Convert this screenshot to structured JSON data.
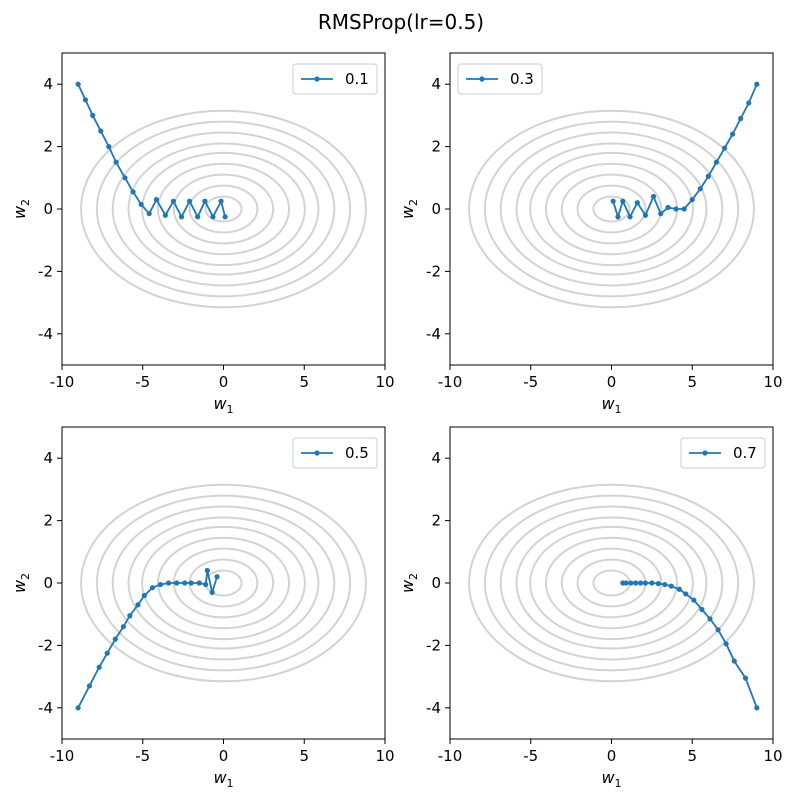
{
  "figure_title": "RMSProp(lr=0.5)",
  "colors": {
    "series": "#1f77b4",
    "contour": "#d3d3d3"
  },
  "chart_data": [
    {
      "type": "line",
      "legend": "0.1",
      "legend_position": "top-right",
      "xlim": [
        -10,
        10
      ],
      "ylim": [
        -5,
        5
      ],
      "xticks": [
        -10,
        -5,
        0,
        5,
        10
      ],
      "yticks": [
        -4,
        -2,
        0,
        2,
        4
      ],
      "xlabel": "w",
      "xlabel_sub": "1",
      "ylabel": "w",
      "ylabel_sub": "2",
      "points": [
        [
          -9,
          4
        ],
        [
          -8.55,
          3.5
        ],
        [
          -8.1,
          3
        ],
        [
          -7.6,
          2.5
        ],
        [
          -7.1,
          2
        ],
        [
          -6.65,
          1.5
        ],
        [
          -6.1,
          1
        ],
        [
          -5.6,
          0.55
        ],
        [
          -5.1,
          0.15
        ],
        [
          -4.6,
          -0.15
        ],
        [
          -4.15,
          0.3
        ],
        [
          -3.6,
          -0.2
        ],
        [
          -3.1,
          0.25
        ],
        [
          -2.6,
          -0.25
        ],
        [
          -2.1,
          0.25
        ],
        [
          -1.6,
          -0.25
        ],
        [
          -1.15,
          0.25
        ],
        [
          -0.65,
          -0.25
        ],
        [
          -0.15,
          0.25
        ],
        [
          0.1,
          -0.25
        ]
      ]
    },
    {
      "type": "line",
      "legend": "0.3",
      "legend_position": "top-left",
      "xlim": [
        -10,
        10
      ],
      "ylim": [
        -5,
        5
      ],
      "xticks": [
        -10,
        -5,
        0,
        5,
        10
      ],
      "yticks": [
        -4,
        -2,
        0,
        2,
        4
      ],
      "xlabel": "w",
      "xlabel_sub": "1",
      "ylabel": "w",
      "ylabel_sub": "2",
      "points": [
        [
          9,
          4
        ],
        [
          8.5,
          3.4
        ],
        [
          8,
          2.9
        ],
        [
          7.5,
          2.4
        ],
        [
          7,
          1.95
        ],
        [
          6.5,
          1.5
        ],
        [
          6,
          1.05
        ],
        [
          5.5,
          0.65
        ],
        [
          5,
          0.3
        ],
        [
          4.5,
          0
        ],
        [
          4,
          0
        ],
        [
          3.5,
          0.05
        ],
        [
          3.05,
          -0.15
        ],
        [
          2.6,
          0.4
        ],
        [
          2.1,
          -0.2
        ],
        [
          1.6,
          0.2
        ],
        [
          1.15,
          -0.25
        ],
        [
          0.7,
          0.25
        ],
        [
          0.4,
          -0.25
        ],
        [
          0.1,
          0.25
        ]
      ]
    },
    {
      "type": "line",
      "legend": "0.5",
      "legend_position": "top-right",
      "xlim": [
        -10,
        10
      ],
      "ylim": [
        -5,
        5
      ],
      "xticks": [
        -10,
        -5,
        0,
        5,
        10
      ],
      "yticks": [
        -4,
        -2,
        0,
        2,
        4
      ],
      "xlabel": "w",
      "xlabel_sub": "1",
      "ylabel": "w",
      "ylabel_sub": "2",
      "points": [
        [
          -9,
          -4
        ],
        [
          -8.3,
          -3.3
        ],
        [
          -7.7,
          -2.7
        ],
        [
          -7.2,
          -2.25
        ],
        [
          -6.7,
          -1.8
        ],
        [
          -6.2,
          -1.4
        ],
        [
          -5.8,
          -1.05
        ],
        [
          -5.3,
          -0.7
        ],
        [
          -4.9,
          -0.4
        ],
        [
          -4.4,
          -0.15
        ],
        [
          -3.9,
          -0.05
        ],
        [
          -3.4,
          0
        ],
        [
          -2.9,
          0
        ],
        [
          -2.4,
          0
        ],
        [
          -2.0,
          0
        ],
        [
          -1.5,
          0
        ],
        [
          -1.1,
          -0.05
        ],
        [
          -1.0,
          0.4
        ],
        [
          -0.7,
          -0.3
        ],
        [
          -0.4,
          0.2
        ]
      ]
    },
    {
      "type": "line",
      "legend": "0.7",
      "legend_position": "top-right",
      "xlim": [
        -10,
        10
      ],
      "ylim": [
        -5,
        5
      ],
      "xticks": [
        -10,
        -5,
        0,
        5,
        10
      ],
      "yticks": [
        -4,
        -2,
        0,
        2,
        4
      ],
      "xlabel": "w",
      "xlabel_sub": "1",
      "ylabel": "w",
      "ylabel_sub": "2",
      "points": [
        [
          9,
          -4
        ],
        [
          8.3,
          -3.05
        ],
        [
          7.6,
          -2.5
        ],
        [
          7.1,
          -1.95
        ],
        [
          6.6,
          -1.5
        ],
        [
          6.1,
          -1.15
        ],
        [
          5.6,
          -0.85
        ],
        [
          5.1,
          -0.55
        ],
        [
          4.6,
          -0.35
        ],
        [
          4.2,
          -0.2
        ],
        [
          3.7,
          -0.1
        ],
        [
          3.3,
          -0.05
        ],
        [
          2.9,
          -0.02
        ],
        [
          2.5,
          0
        ],
        [
          2.1,
          0
        ],
        [
          1.8,
          0
        ],
        [
          1.5,
          0
        ],
        [
          1.2,
          0
        ],
        [
          0.9,
          0
        ],
        [
          0.7,
          0
        ]
      ]
    }
  ],
  "contours": {
    "a_over_b": 2.8,
    "levels_b": [
      0.4,
      0.75,
      1.1,
      1.45,
      1.8,
      2.1,
      2.45,
      2.8,
      3.15
    ]
  }
}
